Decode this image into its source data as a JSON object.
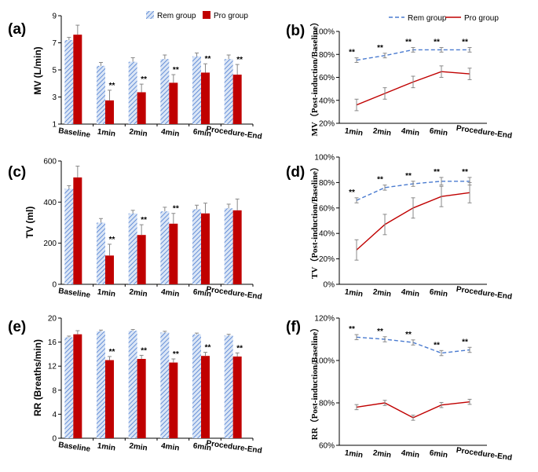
{
  "colors": {
    "rem": "#4a7bd0",
    "rem_hatch_bg": "#dbe6f6",
    "pro": "#c00000",
    "axis": "#000000",
    "error": "#888888"
  },
  "chart_data": [
    {
      "id": "a",
      "panel_label": "(a)",
      "type": "bar",
      "ylabel": "MV (L/min)",
      "ylim": [
        1,
        9
      ],
      "yticks": [
        1,
        3,
        5,
        7,
        9
      ],
      "categories": [
        "Baseline",
        "1min",
        "2min",
        "4min",
        "6min",
        "Procedure-End"
      ],
      "legend": [
        "Rem group",
        "Pro group"
      ],
      "series": [
        {
          "name": "Rem group",
          "values": [
            7.2,
            5.3,
            5.6,
            5.8,
            6.0,
            5.8
          ],
          "errors": [
            0.2,
            0.25,
            0.3,
            0.3,
            0.25,
            0.3
          ]
        },
        {
          "name": "Pro group",
          "values": [
            7.6,
            2.75,
            3.35,
            4.05,
            4.8,
            4.65
          ],
          "errors": [
            0.7,
            0.75,
            0.6,
            0.6,
            0.65,
            0.75
          ]
        }
      ],
      "annotations": [
        {
          "series": 1,
          "category": 1,
          "text": "**"
        },
        {
          "series": 1,
          "category": 2,
          "text": "**"
        },
        {
          "series": 1,
          "category": 3,
          "text": "**"
        },
        {
          "series": 1,
          "category": 4,
          "text": "**"
        },
        {
          "series": 1,
          "category": 5,
          "text": "**"
        }
      ]
    },
    {
      "id": "b",
      "panel_label": "(b)",
      "type": "line",
      "ylabel": "MV（Post-induction/Baseline）",
      "ylim": [
        20,
        100
      ],
      "yticks": [
        "20%",
        "40%",
        "60%",
        "80%",
        "100%"
      ],
      "ytick_values": [
        20,
        40,
        60,
        80,
        100
      ],
      "categories": [
        "1min",
        "2min",
        "4min",
        "6min",
        "Procedure-End"
      ],
      "legend": [
        "Rem group",
        "Pro group"
      ],
      "series": [
        {
          "name": "Rem group",
          "style": "dashed",
          "values": [
            75,
            79,
            84,
            84,
            84
          ],
          "errors": [
            2,
            2,
            2,
            2,
            2
          ]
        },
        {
          "name": "Pro group",
          "style": "solid",
          "values": [
            36,
            46,
            56,
            65,
            63
          ],
          "errors": [
            5,
            5,
            5,
            5,
            5
          ]
        }
      ],
      "annotations": [
        "**",
        "**",
        "**",
        "**",
        "**"
      ]
    },
    {
      "id": "c",
      "panel_label": "(c)",
      "type": "bar",
      "ylabel": "TV (ml)",
      "ylim": [
        0,
        600
      ],
      "yticks": [
        0,
        200,
        400,
        600
      ],
      "categories": [
        "Baseline",
        "1min",
        "2min",
        "4min",
        "6min",
        "Procedure-End"
      ],
      "series": [
        {
          "name": "Rem group",
          "values": [
            465,
            300,
            345,
            355,
            365,
            370
          ],
          "errors": [
            15,
            20,
            15,
            20,
            20,
            20
          ]
        },
        {
          "name": "Pro group",
          "values": [
            520,
            140,
            240,
            295,
            345,
            360
          ],
          "errors": [
            55,
            55,
            50,
            50,
            50,
            55
          ]
        }
      ],
      "annotations": [
        {
          "series": 1,
          "category": 1,
          "text": "**"
        },
        {
          "series": 1,
          "category": 2,
          "text": "**"
        },
        {
          "series": 1,
          "category": 3,
          "text": "**"
        }
      ]
    },
    {
      "id": "d",
      "panel_label": "(d)",
      "type": "line",
      "ylabel": "TV（Post-induction/Baseline）",
      "ylim": [
        0,
        100
      ],
      "yticks": [
        "0%",
        "20%",
        "40%",
        "60%",
        "80%",
        "100%"
      ],
      "ytick_values": [
        0,
        20,
        40,
        60,
        80,
        100
      ],
      "categories": [
        "1min",
        "2min",
        "4min",
        "6min",
        "Procedure-End"
      ],
      "series": [
        {
          "name": "Rem group",
          "style": "dashed",
          "values": [
            66,
            76,
            79,
            81,
            81
          ],
          "errors": [
            2,
            2,
            2,
            3,
            3
          ]
        },
        {
          "name": "Pro group",
          "style": "solid",
          "values": [
            27,
            47,
            60,
            69,
            72
          ],
          "errors": [
            8,
            8,
            8,
            8,
            8
          ]
        }
      ],
      "annotations": [
        "**",
        "**",
        "**",
        "**",
        "**"
      ]
    },
    {
      "id": "e",
      "panel_label": "(e)",
      "type": "bar",
      "ylabel": "RR (Breaths/min)",
      "ylim": [
        0,
        20
      ],
      "yticks": [
        0,
        4,
        8,
        12,
        16,
        20
      ],
      "categories": [
        "Baseline",
        "1min",
        "2min",
        "4min",
        "6min",
        "Procedure-End"
      ],
      "series": [
        {
          "name": "Rem group",
          "values": [
            16.8,
            17.8,
            17.9,
            17.6,
            17.3,
            17.1
          ],
          "errors": [
            0.2,
            0.2,
            0.2,
            0.2,
            0.2,
            0.2
          ]
        },
        {
          "name": "Pro group",
          "values": [
            17.3,
            13.0,
            13.2,
            12.6,
            13.7,
            13.6
          ],
          "errors": [
            0.6,
            0.6,
            0.6,
            0.6,
            0.6,
            0.6
          ]
        }
      ],
      "annotations": [
        {
          "series": 1,
          "category": 1,
          "text": "**"
        },
        {
          "series": 1,
          "category": 2,
          "text": "**"
        },
        {
          "series": 1,
          "category": 3,
          "text": "**"
        },
        {
          "series": 1,
          "category": 4,
          "text": "**"
        },
        {
          "series": 1,
          "category": 5,
          "text": "**"
        }
      ]
    },
    {
      "id": "f",
      "panel_label": "(f)",
      "type": "line",
      "ylabel": "RR（Post-induction/Baseline）",
      "ylim": [
        60,
        120
      ],
      "yticks": [
        "60%",
        "80%",
        "100%",
        "120%"
      ],
      "ytick_values": [
        60,
        80,
        100,
        120
      ],
      "categories": [
        "1min",
        "2min",
        "4min",
        "6min",
        "Procedure-End"
      ],
      "series": [
        {
          "name": "Rem group",
          "style": "dashed",
          "values": [
            111,
            110,
            108.5,
            103.5,
            105
          ],
          "errors": [
            1.2,
            1.2,
            1.2,
            1.2,
            1.2
          ]
        },
        {
          "name": "Pro group",
          "style": "solid",
          "values": [
            78,
            80,
            73,
            79,
            80.5
          ],
          "errors": [
            1.2,
            1.2,
            1.2,
            1.2,
            1.2
          ]
        }
      ],
      "annotations": [
        "**",
        "**",
        "**",
        "**",
        "**"
      ]
    }
  ]
}
